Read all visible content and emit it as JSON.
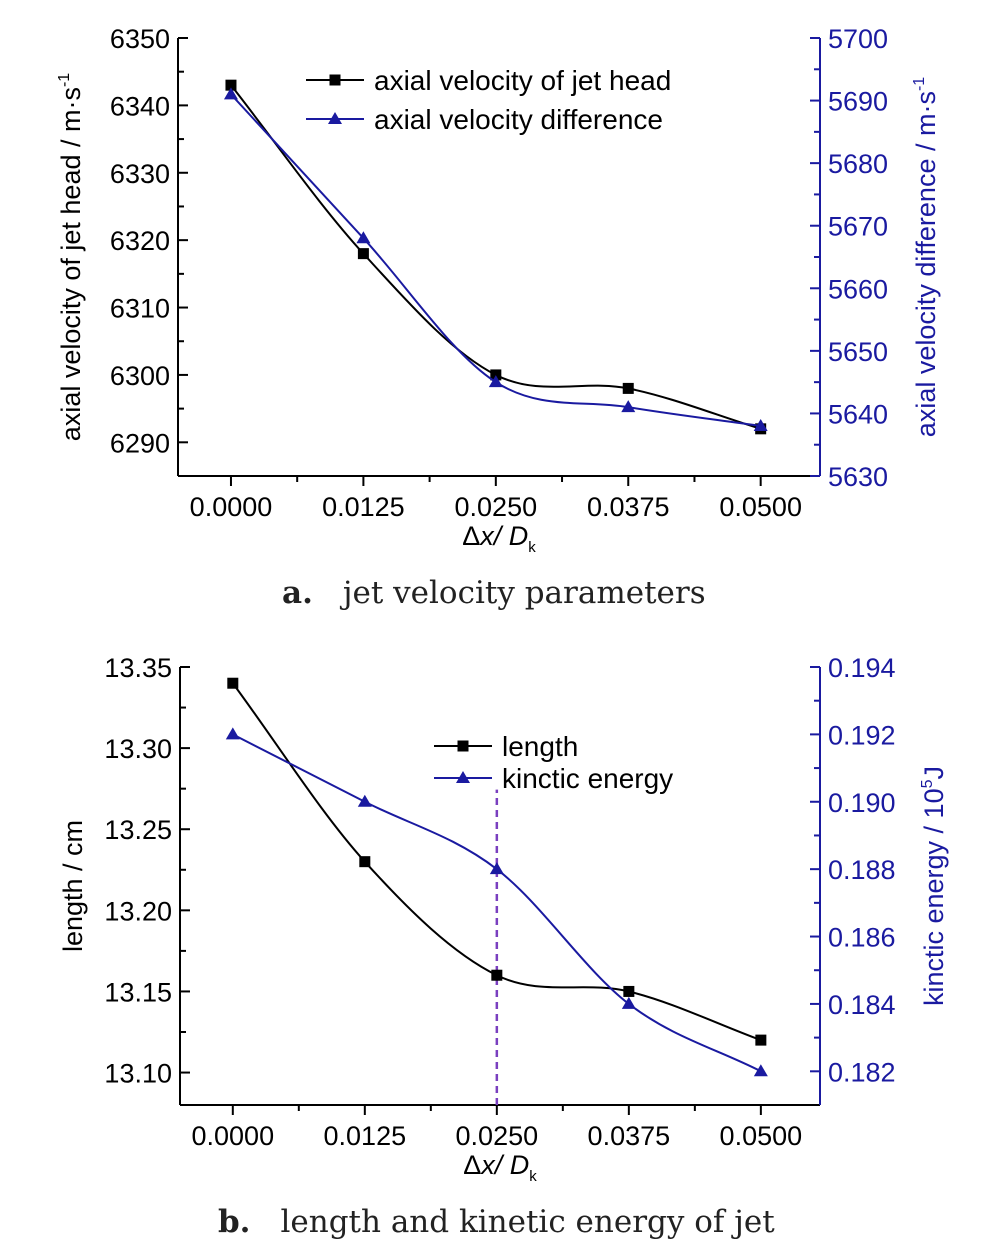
{
  "charts": [
    {
      "caption_letter": "a.",
      "caption_text": "jet velocity parameters",
      "xlabel_delta": "Δ",
      "xlabel_x": "x",
      "xlabel_D": "/ D",
      "xlabel_sub": "k",
      "ylabel_left": "axial velocity of jet head / m·s",
      "ylabel_left_sup": "-1",
      "ylabel_right": "axial velocity difference / m·s",
      "ylabel_right_sup": "-1"
    },
    {
      "caption_letter": "b.",
      "caption_text": "length and kinetic energy of jet",
      "xlabel_delta": "Δ",
      "xlabel_x": "x",
      "xlabel_D": "/ D",
      "xlabel_sub": "k",
      "ylabel_left": "length / cm",
      "ylabel_right": "kinctic energy / 10",
      "ylabel_right_sup": "5",
      "ylabel_right_unit": "J"
    }
  ],
  "chart_data": [
    {
      "type": "line",
      "title": "",
      "x": [
        0.0,
        0.0125,
        0.025,
        0.0375,
        0.05
      ],
      "x_tick_labels": [
        "0.0000",
        "0.0125",
        "0.0250",
        "0.0375",
        "0.0500"
      ],
      "xlim": [
        -0.005,
        0.0556
      ],
      "ylim_left": [
        6285,
        6350
      ],
      "y_ticks_left": [
        "6290",
        "6300",
        "6310",
        "6320",
        "6330",
        "6340",
        "6350"
      ],
      "ylim_right": [
        5630,
        5700
      ],
      "y_ticks_right": [
        "5630",
        "5640",
        "5650",
        "5660",
        "5670",
        "5680",
        "5690",
        "5700"
      ],
      "legend_position": "top-center",
      "grid": false,
      "series": [
        {
          "name": "axial velocity of jet head",
          "axis": "left",
          "marker": "square",
          "color": "#000000",
          "values": [
            6343,
            6318,
            6300,
            6298,
            6292
          ]
        },
        {
          "name": "axial velocity difference",
          "axis": "right",
          "marker": "triangle",
          "color": "#1a1aa0",
          "values": [
            5691,
            5668,
            5645,
            5641,
            5638
          ]
        }
      ]
    },
    {
      "type": "line",
      "title": "",
      "x": [
        0.0,
        0.0125,
        0.025,
        0.0375,
        0.05
      ],
      "x_tick_labels": [
        "0.0000",
        "0.0125",
        "0.0250",
        "0.0375",
        "0.0500"
      ],
      "xlim": [
        -0.005,
        0.0556
      ],
      "ylim_left": [
        13.08,
        13.35
      ],
      "y_ticks_left": [
        "13.10",
        "13.15",
        "13.20",
        "13.25",
        "13.30",
        "13.35"
      ],
      "ylim_right": [
        0.181,
        0.194
      ],
      "y_ticks_right": [
        "0.182",
        "0.184",
        "0.186",
        "0.188",
        "0.190",
        "0.192",
        "0.194"
      ],
      "legend_position": "top-center",
      "grid": false,
      "reference_line_x": 0.025,
      "series": [
        {
          "name": "length",
          "axis": "left",
          "marker": "square",
          "color": "#000000",
          "values": [
            13.34,
            13.23,
            13.16,
            13.15,
            13.12
          ]
        },
        {
          "name": "kinctic energy",
          "axis": "right",
          "marker": "triangle",
          "color": "#1a1aa0",
          "values": [
            0.192,
            0.19,
            0.188,
            0.184,
            0.182
          ]
        }
      ]
    }
  ],
  "colors": {
    "left_axis": "#000000",
    "right_axis": "#1a1aa0",
    "reference_line": "#7a3fbf"
  }
}
